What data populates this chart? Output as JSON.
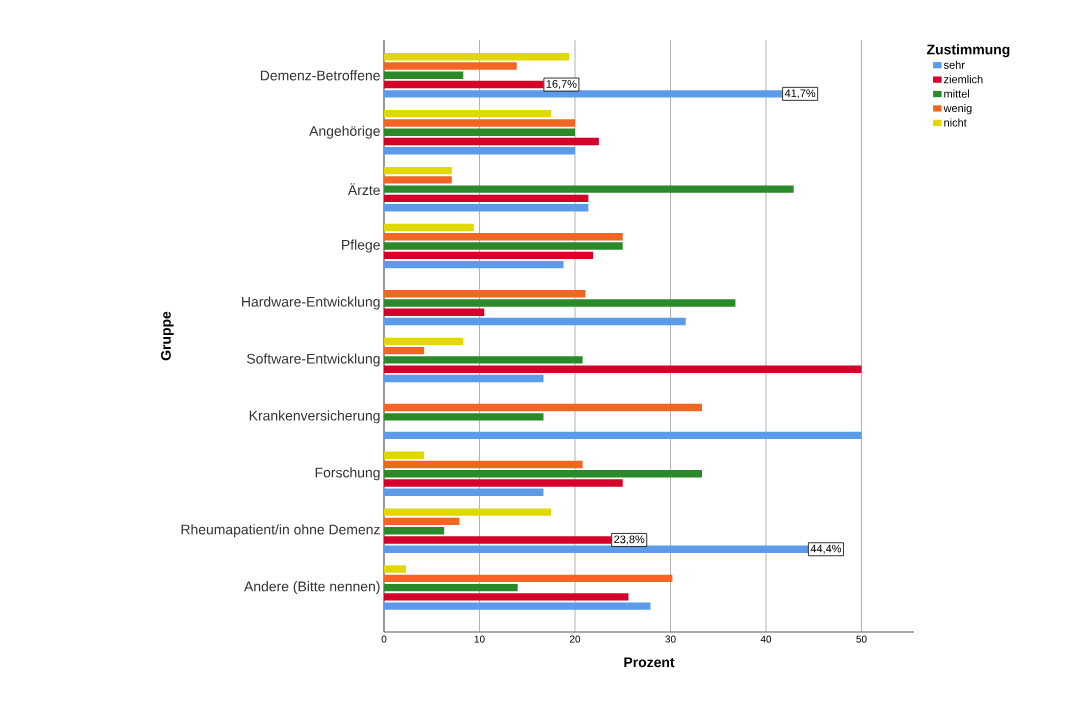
{
  "chart_data": {
    "type": "bar",
    "orientation": "horizontal",
    "xlabel": "Prozent",
    "ylabel": "Gruppe",
    "legend_title": "Zustimmung",
    "legend": "top right",
    "grid": "x",
    "categories": [
      "Demenz-Betroffene",
      "Angehörige",
      "Ärzte",
      "Pflege",
      "Hardware-Entwicklung",
      "Software-Entwicklung",
      "Krankenversicherung",
      "Forschung",
      "Rheumapatient/in ohne Demenz",
      "Andere (Bitte nennen)"
    ],
    "xlim": [
      0,
      55.5
    ],
    "xticks": [
      0,
      10,
      20,
      30,
      40,
      50
    ],
    "series": [
      {
        "name": "sehr",
        "color": "#5b9bea",
        "values": [
          41.7,
          20,
          21.4,
          18.8,
          31.6,
          16.7,
          50,
          16.7,
          44.4,
          27.9
        ],
        "value_labels": [
          "41,7%",
          null,
          null,
          null,
          null,
          null,
          null,
          null,
          "44,4%",
          null
        ]
      },
      {
        "name": "ziemlich",
        "color": "#d4002a",
        "values": [
          16.7,
          22.5,
          21.4,
          21.9,
          10.5,
          50,
          null,
          25,
          23.8,
          25.6
        ],
        "value_labels": [
          "16,7%",
          null,
          null,
          null,
          null,
          null,
          null,
          null,
          "23,8%",
          null
        ]
      },
      {
        "name": "mittel",
        "color": "#2a8a2a",
        "values": [
          8.3,
          20,
          42.9,
          25,
          36.8,
          20.8,
          16.7,
          33.3,
          6.3,
          14
        ]
      },
      {
        "name": "wenig",
        "color": "#f26522",
        "values": [
          13.9,
          20,
          7.1,
          25,
          21.1,
          4.2,
          33.3,
          20.8,
          7.9,
          30.2
        ]
      },
      {
        "name": "nicht",
        "color": "#e0d800",
        "values": [
          19.4,
          17.5,
          7.1,
          9.4,
          null,
          8.3,
          null,
          4.2,
          17.5,
          2.3
        ]
      }
    ]
  }
}
